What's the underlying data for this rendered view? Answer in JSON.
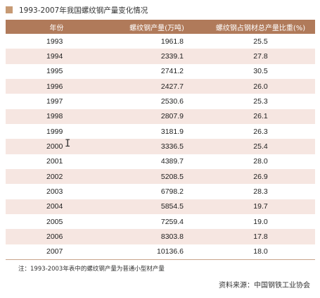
{
  "title": "1993-2007年我国螺纹钢产量变化情况",
  "colors": {
    "title_square": "#c79a74",
    "header_bg": "#b07a5a",
    "row_stripe": "#f6e6e1"
  },
  "table": {
    "headers": [
      "年份",
      "螺纹钢产量(万吨)",
      "螺纹钢占钢材总产量比重(%)"
    ],
    "rows": [
      [
        "1993",
        "1961.8",
        "25.5"
      ],
      [
        "1994",
        "2339.1",
        "27.8"
      ],
      [
        "1995",
        "2741.2",
        "30.5"
      ],
      [
        "1996",
        "2427.7",
        "26.0"
      ],
      [
        "1997",
        "2530.6",
        "25.3"
      ],
      [
        "1998",
        "2807.9",
        "26.1"
      ],
      [
        "1999",
        "3181.9",
        "26.3"
      ],
      [
        "2000",
        "3336.5",
        "25.4"
      ],
      [
        "2001",
        "4389.7",
        "28.0"
      ],
      [
        "2002",
        "5208.5",
        "26.9"
      ],
      [
        "2003",
        "6798.2",
        "28.3"
      ],
      [
        "2004",
        "5854.5",
        "19.7"
      ],
      [
        "2005",
        "7259.4",
        "19.0"
      ],
      [
        "2006",
        "8303.8",
        "17.8"
      ],
      [
        "2007",
        "10136.6",
        "18.0"
      ]
    ]
  },
  "note": "注：1993-2003年表中的螺纹钢产量为普通小型材产量",
  "source": "资料来源：中国钢铁工业协会",
  "cursor_icon": "text-cursor-icon"
}
